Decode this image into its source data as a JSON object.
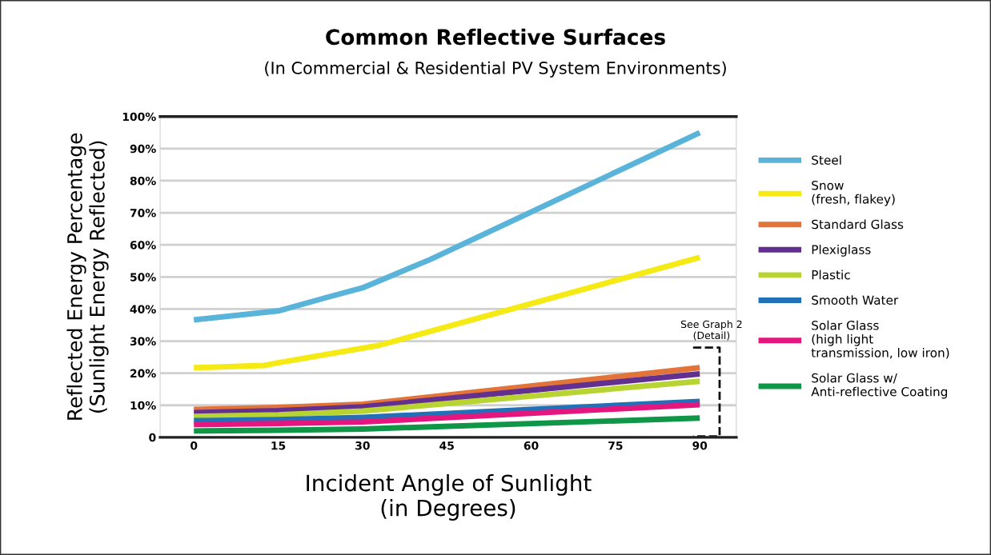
{
  "chart_data": {
    "type": "line",
    "title": "Common Reflective Surfaces",
    "subtitle": "(In Commercial & Residential PV System Environments)",
    "xlabel": "Incident Angle of Sunlight\n(in Degrees)",
    "ylabel": "Reflected Energy Percentage\n(Sunlight Energy Reflected)",
    "series": [
      {
        "name": "Steel",
        "color": "#5ab4d9",
        "x": [
          0,
          15,
          23.6,
          30,
          42,
          90
        ],
        "values": [
          36.6,
          39.4,
          43.6,
          46.6,
          55.4,
          95
        ]
      },
      {
        "name": "Snow\n(fresh, flakey)",
        "color": "#f5ea14",
        "x": [
          0,
          12.5,
          14.8,
          33,
          90
        ],
        "values": [
          21.7,
          22.4,
          23.2,
          28.7,
          56.1
        ]
      },
      {
        "name": "Standard Glass",
        "color": "#e2743a",
        "x": [
          0,
          15,
          30,
          90
        ],
        "values": [
          8.7,
          9.3,
          10.3,
          21.7
        ]
      },
      {
        "name": "Plexiglass",
        "color": "#63308f",
        "x": [
          0,
          15,
          30,
          90
        ],
        "values": [
          7.7,
          8.3,
          9.5,
          19.8
        ]
      },
      {
        "name": "Plastic",
        "color": "#b8d432",
        "x": [
          0,
          15,
          30,
          90
        ],
        "values": [
          6.5,
          7.0,
          8.2,
          17.5
        ]
      },
      {
        "name": "Smooth Water",
        "color": "#2270b8",
        "x": [
          0,
          15,
          30,
          90
        ],
        "values": [
          5.2,
          5.5,
          6.2,
          11.2
        ]
      },
      {
        "name": "Solar Glass\n(high light\ntransmission, low iron)",
        "color": "#e5177f",
        "x": [
          0,
          15,
          30,
          90
        ],
        "values": [
          4.0,
          4.3,
          4.8,
          10.2
        ]
      },
      {
        "name": "Solar Glass w/\nAnti-reflective Coating",
        "color": "#0f9647",
        "x": [
          0,
          15,
          30,
          90
        ],
        "values": [
          2.0,
          2.2,
          2.6,
          6.0
        ]
      }
    ],
    "xlim": [
      -6,
      96.5
    ],
    "xticks": [
      0,
      15,
      30,
      45,
      60,
      75,
      90
    ],
    "ylim": [
      0,
      100
    ],
    "yticks": [
      {
        "value": 0,
        "label": "0"
      },
      {
        "value": 10,
        "label": "10%"
      },
      {
        "value": 20,
        "label": "20%"
      },
      {
        "value": 30,
        "label": "30%"
      },
      {
        "value": 40,
        "label": "40%"
      },
      {
        "value": 50,
        "label": "50%"
      },
      {
        "value": 60,
        "label": "60%"
      },
      {
        "value": 70,
        "label": "70%"
      },
      {
        "value": 80,
        "label": "80%"
      },
      {
        "value": 90,
        "label": "90%"
      },
      {
        "value": 100,
        "label": "100%"
      }
    ],
    "annotations": [
      "See Graph 2\n(Detail)"
    ],
    "grid": "y",
    "legend": "right",
    "marker": "none",
    "line_style": "solid"
  }
}
